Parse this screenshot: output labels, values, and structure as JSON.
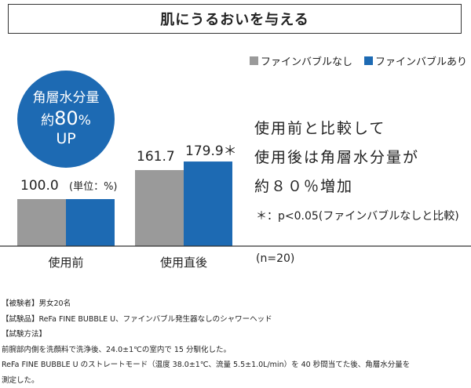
{
  "title": "肌にうるおいを与える",
  "chart_data": {
    "type": "bar",
    "categories": [
      "使用前",
      "使用直後"
    ],
    "series": [
      {
        "name": "ファインバブルなし",
        "values": [
          100.0,
          161.7
        ],
        "color": "#9a9a9a"
      },
      {
        "name": "ファインバブルあり",
        "values": [
          100.0,
          179.9
        ],
        "color": "#1d6ab3"
      }
    ],
    "bar_labels": [
      "100.0",
      "161.7",
      "179.9＊"
    ],
    "unit_label": "(単位：%)",
    "ylim": [
      0,
      200
    ],
    "legend_position": "top-right"
  },
  "badge": {
    "line1": "角層水分量",
    "line2_prefix": "約",
    "line2_value": "80",
    "line2_unit": "%",
    "line3": "UP"
  },
  "summary": [
    "使用前と比較して",
    "使用後は角層水分量が",
    "約８０％増加"
  ],
  "note": "＊：p<0.05(ファインバブルなしと比較)",
  "sample_size": "(n=20)",
  "method_lines": [
    "【被験者】男女20名",
    "【試験品】ReFa FINE BUBBLE U、ファインバブル発生器なしのシャワーヘッド",
    "【試験方法】",
    "前腕部内側を洗顔料で洗浄後、24.0±1℃の室内で 15 分馴化した。",
    "ReFa FINE BUBBLE U のストレートモード（温度 38.0±1℃、流量 5.5±1.0L/min）を 40 秒間当てた後、角層水分量を",
    "測定した。"
  ]
}
